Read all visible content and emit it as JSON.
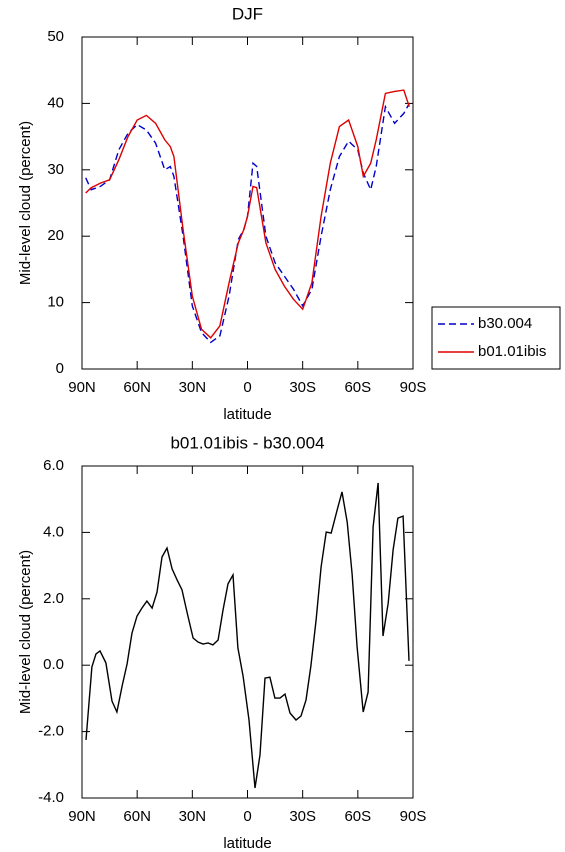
{
  "chart_data": [
    {
      "type": "line",
      "title": "DJF",
      "x_label": "latitude",
      "y_label": "Mid-level cloud (percent)",
      "x": [
        88,
        85,
        80,
        75,
        70,
        65,
        60,
        55,
        50,
        45,
        42,
        40,
        35,
        30,
        25,
        20,
        15,
        10,
        5,
        2,
        0,
        -3,
        -5,
        -10,
        -15,
        -20,
        -25,
        -30,
        -35,
        -40,
        -45,
        -50,
        -55,
        -60,
        -63,
        -67,
        -70,
        -75,
        -80,
        -85,
        -88
      ],
      "series": [
        {
          "name": "b30.004",
          "color": "#0000cc",
          "dash": true,
          "values": [
            28.8,
            27,
            27.5,
            28.5,
            33,
            35.5,
            36.8,
            36,
            34,
            30,
            30.5,
            29,
            20,
            9.5,
            5.5,
            4,
            5,
            11,
            19.5,
            21,
            23,
            31,
            30.5,
            20,
            16,
            14,
            12,
            9.5,
            12,
            20,
            27,
            32,
            34.3,
            33,
            29.5,
            27,
            30.5,
            39.5,
            37,
            38.5,
            40
          ]
        },
        {
          "name": "b01.01ibis",
          "color": "#dd0000",
          "dash": false,
          "values": [
            26.5,
            27.3,
            28,
            28.5,
            31.5,
            35,
            37.5,
            38.2,
            37,
            34.5,
            33.5,
            32,
            21,
            11,
            6,
            4.7,
            6.5,
            13,
            19,
            21,
            23,
            27.5,
            27.3,
            19,
            15,
            12.5,
            10.5,
            9,
            13,
            23,
            31,
            36.5,
            37.5,
            33.5,
            29,
            31,
            34.5,
            41.5,
            41.8,
            42,
            39.5
          ]
        }
      ],
      "xlim": [
        90,
        -90
      ],
      "xticks": [
        {
          "value": 90,
          "label": "90N"
        },
        {
          "value": 60,
          "label": "60N"
        },
        {
          "value": 30,
          "label": "30N"
        },
        0,
        {
          "value": -30,
          "label": "30S"
        },
        {
          "value": -60,
          "label": "60S"
        },
        {
          "value": -90,
          "label": "90S"
        }
      ],
      "ylim": [
        0,
        50
      ],
      "yticks": [
        0,
        10,
        20,
        30,
        40,
        50
      ],
      "legend": "right"
    },
    {
      "type": "line",
      "title": "b01.01ibis - b30.004",
      "x_label": "latitude",
      "y_label": "Mid-level cloud (percent)",
      "x": [
        87.8,
        84.6,
        82.4,
        80.2,
        77,
        73.7,
        71,
        68.2,
        65.5,
        62.8,
        60.1,
        57.4,
        54.7,
        51.9,
        49.2,
        46.5,
        43.8,
        41,
        38.3,
        35.6,
        32.9,
        29.6,
        26.9,
        24.2,
        21.4,
        18.8,
        16,
        13.3,
        10.6,
        7.9,
        5.2,
        2.4,
        -0.8,
        -4.1,
        -6.8,
        -9.5,
        -12.2,
        -14.9,
        -17.7,
        -20.4,
        -23.1,
        -26.4,
        -29.1,
        -31.8,
        -34.5,
        -37.3,
        -40,
        -42.8,
        -45.5,
        -48.7,
        -51.4,
        -54.2,
        -56.9,
        -59.6,
        -62.9,
        -65.6,
        -68.3,
        -71,
        -73.7,
        -76.5,
        -79.2,
        -81.8,
        -84.6,
        -87.8
      ],
      "series": [
        {
          "color": "#000000",
          "dash": false,
          "values": [
            -2.25,
            -0.05,
            0.34,
            0.43,
            0.07,
            -1.08,
            -1.41,
            -0.63,
            0.04,
            0.97,
            1.48,
            1.72,
            1.93,
            1.72,
            2.2,
            3.26,
            3.53,
            2.9,
            2.57,
            2.27,
            1.6,
            0.82,
            0.7,
            0.64,
            0.67,
            0.61,
            0.76,
            1.66,
            2.45,
            2.72,
            0.52,
            -0.33,
            -1.65,
            -3.7,
            -2.7,
            -0.39,
            -0.36,
            -0.99,
            -0.99,
            -0.87,
            -1.44,
            -1.65,
            -1.53,
            -1.05,
            -0.02,
            1.36,
            2.96,
            4.01,
            3.98,
            4.67,
            5.22,
            4.31,
            2.75,
            0.55,
            -1.41,
            -0.81,
            4.16,
            5.49,
            0.88,
            1.87,
            3.47,
            4.43,
            4.49,
            0.13
          ]
        }
      ],
      "xlim": [
        90,
        -90
      ],
      "xticks": [
        {
          "value": 90,
          "label": "90N"
        },
        {
          "value": 60,
          "label": "60N"
        },
        {
          "value": 30,
          "label": "30N"
        },
        0,
        {
          "value": -30,
          "label": "30S"
        },
        {
          "value": -60,
          "label": "60S"
        },
        {
          "value": -90,
          "label": "90S"
        }
      ],
      "ylim": [
        -4,
        6
      ],
      "yticks": [
        {
          "value": -4,
          "label": "-4.0"
        },
        {
          "value": -2,
          "label": "-2.0"
        },
        {
          "value": 0,
          "label": "0.0"
        },
        {
          "value": 2,
          "label": "2.0"
        },
        {
          "value": 4,
          "label": "4.0"
        },
        {
          "value": 6,
          "label": "6.0"
        }
      ]
    }
  ]
}
